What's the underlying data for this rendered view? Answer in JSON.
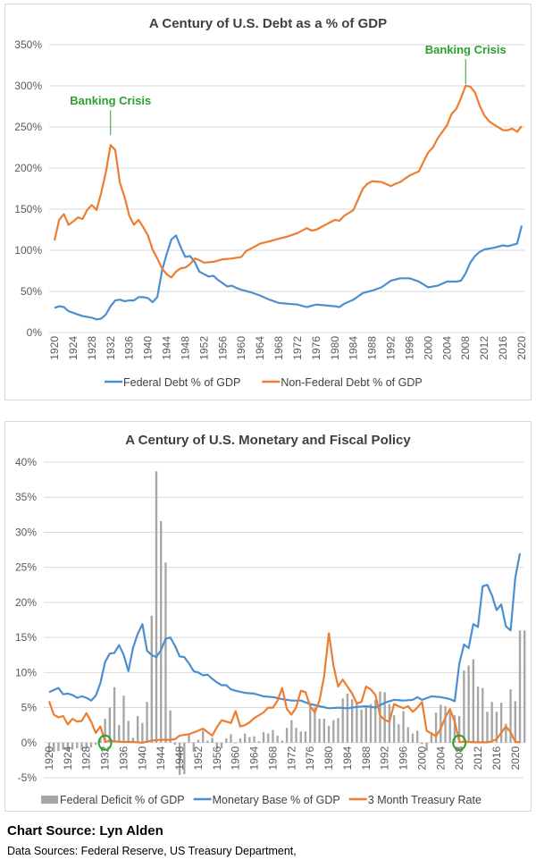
{
  "chart_data": [
    {
      "type": "line",
      "title": "A Century of U.S. Debt as a % of GDP",
      "xlabel": "",
      "ylabel": "",
      "ylim": [
        0,
        350
      ],
      "yticks": [
        "0%",
        "50%",
        "100%",
        "150%",
        "200%",
        "250%",
        "300%",
        "350%"
      ],
      "ytick_values": [
        0,
        50,
        100,
        150,
        200,
        250,
        300,
        350
      ],
      "xticks": [
        "1920",
        "1924",
        "1928",
        "1932",
        "1936",
        "1940",
        "1944",
        "1948",
        "1952",
        "1956",
        "1960",
        "1964",
        "1968",
        "1972",
        "1976",
        "1980",
        "1984",
        "1988",
        "1992",
        "1996",
        "2000",
        "2004",
        "2008",
        "2012",
        "2016",
        "2020"
      ],
      "xlim": [
        1920,
        2020
      ],
      "grid": true,
      "legend": "bottom",
      "annotations": [
        {
          "text": "Banking Crisis",
          "x": 1932,
          "y": 240,
          "color": "#2ca02c"
        },
        {
          "text": "Banking Crisis",
          "x": 2008,
          "y": 302,
          "color": "#2ca02c"
        }
      ],
      "series": [
        {
          "name": "Federal Debt % of GDP",
          "color": "#4a8fd0",
          "x": [
            1920,
            1921,
            1922,
            1923,
            1924,
            1925,
            1926,
            1927,
            1928,
            1929,
            1930,
            1931,
            1932,
            1933,
            1934,
            1935,
            1936,
            1937,
            1938,
            1939,
            1940,
            1941,
            1942,
            1943,
            1944,
            1945,
            1946,
            1947,
            1948,
            1949,
            1950,
            1951,
            1952,
            1953,
            1954,
            1955,
            1956,
            1957,
            1958,
            1959,
            1960,
            1962,
            1964,
            1966,
            1968,
            1970,
            1972,
            1974,
            1976,
            1978,
            1980,
            1981,
            1982,
            1984,
            1986,
            1988,
            1990,
            1992,
            1994,
            1996,
            1998,
            2000,
            2002,
            2004,
            2006,
            2007,
            2008,
            2009,
            2010,
            2011,
            2012,
            2014,
            2016,
            2017,
            2019,
            2020
          ],
          "y": [
            30,
            32,
            31,
            26,
            24,
            22,
            20,
            19,
            18,
            16,
            17,
            22,
            32,
            39,
            40,
            38,
            39,
            39,
            43,
            43,
            42,
            37,
            43,
            75,
            95,
            113,
            118,
            104,
            92,
            93,
            86,
            74,
            71,
            68,
            69,
            64,
            60,
            56,
            57,
            54,
            52,
            49,
            45,
            40,
            36,
            35,
            34,
            31,
            34,
            33,
            32,
            31,
            35,
            40,
            48,
            51,
            55,
            63,
            66,
            66,
            62,
            55,
            57,
            62,
            62,
            63,
            72,
            85,
            93,
            98,
            101,
            103,
            106,
            105,
            108,
            130
          ]
        },
        {
          "name": "Non-Federal Debt % of GDP",
          "color": "#ed7d31",
          "x": [
            1920,
            1921,
            1922,
            1923,
            1924,
            1925,
            1926,
            1927,
            1928,
            1929,
            1930,
            1931,
            1932,
            1933,
            1934,
            1935,
            1936,
            1937,
            1938,
            1939,
            1940,
            1941,
            1942,
            1943,
            1944,
            1945,
            1946,
            1947,
            1948,
            1949,
            1950,
            1951,
            1952,
            1954,
            1956,
            1958,
            1960,
            1961,
            1962,
            1964,
            1966,
            1968,
            1970,
            1972,
            1974,
            1975,
            1976,
            1978,
            1980,
            1981,
            1982,
            1984,
            1985,
            1986,
            1987,
            1988,
            1990,
            1992,
            1993,
            1994,
            1996,
            1998,
            1999,
            2000,
            2001,
            2002,
            2004,
            2005,
            2006,
            2007,
            2008,
            2009,
            2010,
            2011,
            2012,
            2013,
            2014,
            2016,
            2017,
            2018,
            2019,
            2020
          ],
          "y": [
            112,
            137,
            144,
            131,
            135,
            140,
            138,
            149,
            155,
            149,
            170,
            195,
            228,
            222,
            182,
            165,
            142,
            131,
            137,
            128,
            118,
            101,
            90,
            78,
            71,
            67,
            74,
            78,
            79,
            83,
            90,
            88,
            85,
            86,
            89,
            90,
            92,
            99,
            102,
            108,
            111,
            114,
            117,
            121,
            127,
            124,
            125,
            131,
            137,
            136,
            142,
            149,
            162,
            175,
            181,
            184,
            183,
            178,
            181,
            183,
            191,
            196,
            208,
            219,
            225,
            236,
            252,
            266,
            272,
            285,
            300,
            299,
            292,
            276,
            264,
            257,
            253,
            246,
            246,
            248,
            244,
            251
          ]
        }
      ]
    },
    {
      "type": "bar+line",
      "title": "A Century of U.S. Monetary and Fiscal Policy",
      "xlabel": "",
      "ylabel": "",
      "ylim": [
        -5,
        40
      ],
      "yticks": [
        "-5%",
        "0%",
        "5%",
        "10%",
        "15%",
        "20%",
        "25%",
        "30%",
        "35%",
        "40%"
      ],
      "ytick_values": [
        -5,
        0,
        5,
        10,
        15,
        20,
        25,
        30,
        35,
        40
      ],
      "xticks": [
        "1920",
        "1924",
        "1928",
        "1932",
        "1936",
        "1940",
        "1944",
        "1948",
        "1952",
        "1956",
        "1960",
        "1964",
        "1968",
        "1972",
        "1976",
        "1980",
        "1984",
        "1988",
        "1992",
        "1996",
        "2000",
        "2004",
        "2008",
        "2012",
        "2016",
        "2020"
      ],
      "xlim": [
        1920,
        2021
      ],
      "grid": true,
      "legend": "bottom",
      "annotations": [
        {
          "type": "circle",
          "x": 1932,
          "y": 0,
          "color": "#2ca02c"
        },
        {
          "type": "circle",
          "x": 2008,
          "y": 0,
          "color": "#2ca02c"
        }
      ],
      "bars": {
        "name": "Federal Deficit % of GDP",
        "color": "#a6a6a6",
        "x_start": 1920,
        "values": [
          -1.5,
          -1.3,
          -1.2,
          -1.0,
          -1.2,
          -1.0,
          -0.8,
          -1.1,
          -0.8,
          -0.7,
          -0.3,
          0.6,
          3.4,
          5.0,
          7.9,
          2.5,
          6.7,
          3.1,
          0.7,
          3.8,
          2.8,
          5.8,
          18.1,
          38.7,
          31.6,
          25.7,
          4.6,
          -0.3,
          -4.6,
          -4.5,
          1.1,
          -1.3,
          0.4,
          1.7,
          0.3,
          0.7,
          -0.9,
          -0.8,
          0.6,
          1.2,
          -0.1,
          0.6,
          1.3,
          0.8,
          0.9,
          0.2,
          1.5,
          1.3,
          1.8,
          1.0,
          0.3,
          2.1,
          3.2,
          2.1,
          1.6,
          1.6,
          5.0,
          5.0,
          3.4,
          3.4,
          2.4,
          3.2,
          3.5,
          6.3,
          7.0,
          6.2,
          5.8,
          4.7,
          5.1,
          5.5,
          6.1,
          7.3,
          7.2,
          5.5,
          3.9,
          2.6,
          4.5,
          2.2,
          1.3,
          1.7,
          -0.2,
          -1.2,
          1.5,
          4.3,
          5.4,
          5.2,
          4.6,
          3.9,
          3.8,
          10.3,
          11.0,
          11.9,
          8.0,
          7.8,
          4.4,
          5.8,
          4.4,
          5.7,
          2.7,
          7.6,
          5.9,
          16.0,
          16.0
        ]
      },
      "series": [
        {
          "name": "Monetary Base % of GDP",
          "color": "#4a8fd0",
          "x": [
            1920,
            1921,
            1922,
            1923,
            1924,
            1925,
            1926,
            1927,
            1928,
            1929,
            1930,
            1931,
            1932,
            1933,
            1934,
            1935,
            1936,
            1937,
            1938,
            1939,
            1940,
            1941,
            1942,
            1943,
            1944,
            1945,
            1946,
            1947,
            1948,
            1949,
            1950,
            1951,
            1952,
            1953,
            1954,
            1955,
            1956,
            1957,
            1958,
            1959,
            1960,
            1962,
            1964,
            1966,
            1968,
            1970,
            1972,
            1974,
            1976,
            1978,
            1980,
            1982,
            1984,
            1986,
            1988,
            1990,
            1992,
            1994,
            1996,
            1998,
            1999,
            2000,
            2002,
            2004,
            2006,
            2007,
            2008,
            2009,
            2010,
            2011,
            2012,
            2013,
            2014,
            2015,
            2016,
            2017,
            2018,
            2019,
            2020,
            2021
          ],
          "y": [
            7.2,
            7.5,
            7.8,
            6.9,
            7.0,
            6.8,
            6.4,
            6.6,
            6.4,
            6.0,
            6.7,
            8.5,
            11.5,
            12.7,
            12.8,
            13.9,
            12.5,
            10.2,
            13.5,
            15.5,
            16.9,
            13.1,
            12.5,
            12.2,
            13.2,
            14.8,
            15.0,
            13.8,
            12.3,
            12.2,
            11.3,
            10.2,
            10.0,
            9.6,
            9.7,
            9.1,
            8.6,
            8.2,
            8.2,
            7.6,
            7.4,
            7.1,
            7.0,
            6.6,
            6.5,
            6.2,
            6.0,
            6.0,
            5.5,
            5.2,
            4.9,
            5.0,
            4.9,
            5.1,
            5.2,
            5.0,
            5.7,
            6.1,
            6.0,
            6.1,
            6.5,
            6.1,
            6.6,
            6.5,
            6.2,
            5.9,
            11.3,
            14.0,
            13.5,
            16.9,
            16.5,
            22.3,
            22.5,
            21.0,
            18.9,
            19.7,
            16.6,
            16.0,
            23.5,
            27.0
          ]
        },
        {
          "name": "3 Month Treasury Rate",
          "color": "#ed7d31",
          "x": [
            1920,
            1921,
            1922,
            1923,
            1924,
            1925,
            1926,
            1927,
            1928,
            1929,
            1930,
            1931,
            1932,
            1933,
            1934,
            1936,
            1938,
            1940,
            1942,
            1944,
            1946,
            1947,
            1948,
            1949,
            1950,
            1952,
            1953,
            1954,
            1955,
            1956,
            1957,
            1958,
            1959,
            1960,
            1961,
            1962,
            1963,
            1964,
            1965,
            1966,
            1967,
            1968,
            1969,
            1970,
            1971,
            1972,
            1973,
            1974,
            1975,
            1976,
            1977,
            1978,
            1979,
            1980,
            1981,
            1982,
            1983,
            1984,
            1985,
            1986,
            1987,
            1988,
            1989,
            1990,
            1991,
            1992,
            1993,
            1994,
            1995,
            1996,
            1997,
            1998,
            1999,
            2000,
            2001,
            2002,
            2003,
            2004,
            2005,
            2006,
            2007,
            2008,
            2009,
            2010,
            2012,
            2014,
            2015,
            2016,
            2017,
            2018,
            2019,
            2020,
            2021
          ],
          "y": [
            5.9,
            4.0,
            3.6,
            3.8,
            2.6,
            3.4,
            3.0,
            3.1,
            4.2,
            3.0,
            1.4,
            2.3,
            0.1,
            0.3,
            0.2,
            0.1,
            0.1,
            0.0,
            0.3,
            0.4,
            0.4,
            0.5,
            1.0,
            1.1,
            1.2,
            1.7,
            2.0,
            1.5,
            1.0,
            2.2,
            3.2,
            3.0,
            2.8,
            4.5,
            2.3,
            2.5,
            2.9,
            3.5,
            3.9,
            4.3,
            5.0,
            5.0,
            6.0,
            7.8,
            4.8,
            4.0,
            5.0,
            7.4,
            7.2,
            5.2,
            4.3,
            6.0,
            9.5,
            15.6,
            11.0,
            8.0,
            9.0,
            8.0,
            7.0,
            5.6,
            5.8,
            8.0,
            7.6,
            6.8,
            3.9,
            3.2,
            3.0,
            5.5,
            5.2,
            4.9,
            5.2,
            4.4,
            5.0,
            5.8,
            1.7,
            1.3,
            0.9,
            2.0,
            3.6,
            4.8,
            3.0,
            0.1,
            0.1,
            0.1,
            0.05,
            0.05,
            0.2,
            0.5,
            1.4,
            2.3,
            1.5,
            0.1,
            0.05
          ]
        }
      ]
    }
  ],
  "footer": {
    "chart_source": "Chart Source: Lyn Alden",
    "data_sources": "Data Sources: Federal Reserve, US Treasury Department,"
  }
}
